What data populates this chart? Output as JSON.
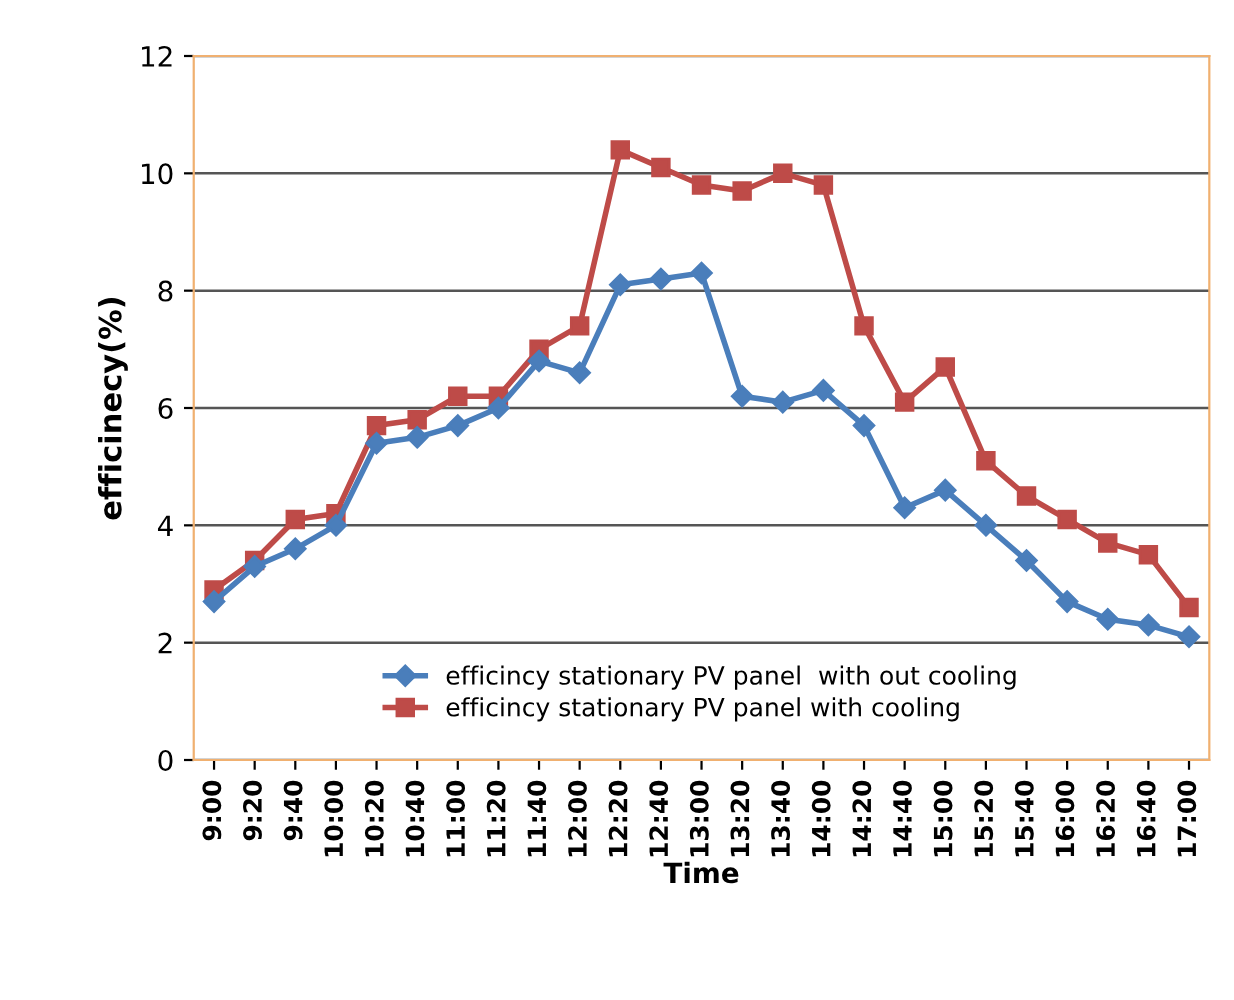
{
  "chart_data": {
    "type": "line",
    "xlabel": "Time",
    "ylabel": "efficinecy(%)",
    "categories": [
      "9:00",
      "9:20",
      "9:40",
      "10:00",
      "10:20",
      "10:40",
      "11:00",
      "11:20",
      "11:40",
      "12:00",
      "12:20",
      "12:40",
      "13:00",
      "13:20",
      "13:40",
      "14:00",
      "14:20",
      "14:40",
      "15:00",
      "15:20",
      "15:40",
      "16:00",
      "16:20",
      "16:40",
      "17:00"
    ],
    "series": [
      {
        "name": "efficincy stationary PV panel  with out cooling",
        "color": "#4a7ebb",
        "marker": "diamond",
        "values": [
          2.7,
          3.3,
          3.6,
          4.0,
          5.4,
          5.5,
          5.7,
          6.0,
          6.8,
          6.6,
          8.1,
          8.2,
          8.3,
          6.2,
          6.1,
          6.3,
          5.7,
          4.3,
          4.6,
          4.0,
          3.4,
          2.7,
          2.4,
          2.3,
          2.1
        ]
      },
      {
        "name": "efficincy stationary PV panel with cooling",
        "color": "#be4b48",
        "marker": "square",
        "values": [
          2.9,
          3.4,
          4.1,
          4.2,
          5.7,
          5.8,
          6.2,
          6.2,
          7.0,
          7.4,
          10.4,
          10.1,
          9.8,
          9.7,
          10.0,
          9.8,
          7.4,
          6.1,
          6.7,
          5.1,
          4.5,
          4.1,
          3.7,
          3.5,
          2.6
        ]
      }
    ],
    "ylim": [
      0,
      12
    ],
    "yticks": [
      0,
      2,
      4,
      6,
      8,
      10,
      12
    ],
    "grid": "y",
    "legend": "bottom"
  }
}
